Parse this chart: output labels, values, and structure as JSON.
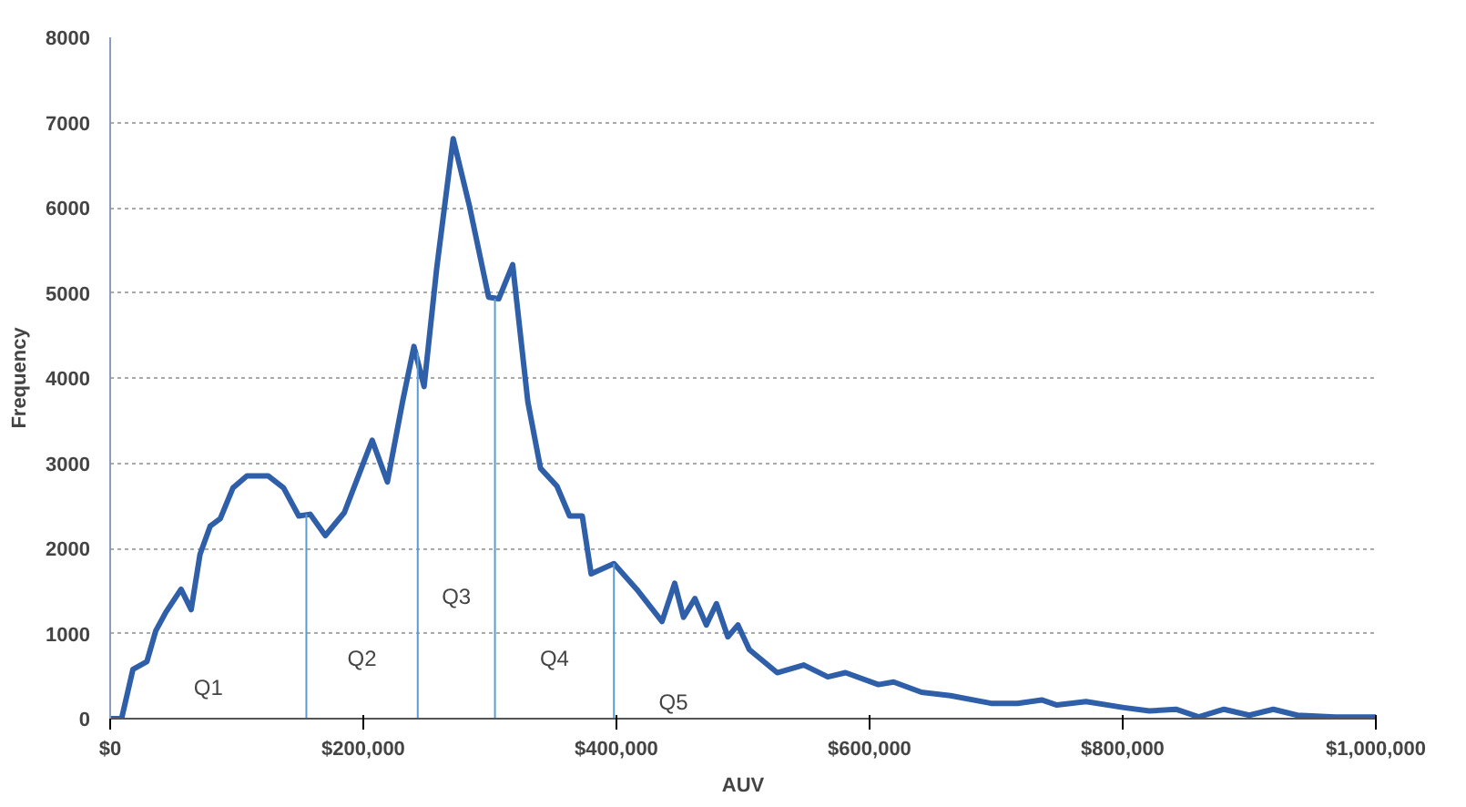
{
  "chart_data": {
    "type": "line",
    "xlabel": "AUV",
    "ylabel": "Frequency",
    "xlim": [
      0,
      1000000
    ],
    "ylim": [
      0,
      8000
    ],
    "xticks": [
      {
        "value": 0,
        "label": "$0"
      },
      {
        "value": 200000,
        "label": "$200,000"
      },
      {
        "value": 400000,
        "label": "$400,000"
      },
      {
        "value": 600000,
        "label": "$600,000"
      },
      {
        "value": 800000,
        "label": "$800,000"
      },
      {
        "value": 1000000,
        "label": "$1,000,000"
      }
    ],
    "yticks": [
      0,
      1000,
      2000,
      3000,
      4000,
      5000,
      6000,
      7000,
      8000
    ],
    "grid": "y",
    "marker": "none",
    "line_style": "solid",
    "series": [
      {
        "color": "#2e5fa8",
        "x": [
          0,
          9000,
          18000,
          29000,
          36000,
          44000,
          56000,
          64000,
          71000,
          79000,
          87000,
          97000,
          108000,
          125000,
          137000,
          149000,
          158000,
          170000,
          185000,
          207000,
          219000,
          231000,
          240000,
          248000,
          258000,
          271000,
          284000,
          299000,
          307000,
          318000,
          330000,
          340000,
          353000,
          363000,
          373000,
          380000,
          398000,
          416000,
          436000,
          446000,
          453000,
          462000,
          471000,
          479000,
          488000,
          496000,
          505000,
          527000,
          548000,
          567000,
          581000,
          607000,
          619000,
          641000,
          664000,
          696000,
          717000,
          736000,
          748000,
          771000,
          801000,
          821000,
          842000,
          860000,
          880000,
          900000,
          919000,
          938000,
          968000,
          1000000
        ],
        "values": [
          0,
          0,
          580,
          670,
          1030,
          1250,
          1520,
          1280,
          1930,
          2260,
          2350,
          2710,
          2850,
          2850,
          2710,
          2380,
          2400,
          2150,
          2420,
          3270,
          2780,
          3720,
          4370,
          3900,
          5290,
          6810,
          6010,
          4950,
          4930,
          5330,
          3720,
          2940,
          2730,
          2380,
          2380,
          1700,
          1820,
          1520,
          1140,
          1590,
          1190,
          1410,
          1100,
          1350,
          960,
          1100,
          810,
          540,
          630,
          490,
          540,
          400,
          430,
          310,
          270,
          180,
          180,
          220,
          160,
          200,
          130,
          90,
          110,
          20,
          110,
          40,
          110,
          40,
          20,
          20
        ]
      },
      {
        "color": "#5b9bd5",
        "x": [
          155000,
          155000
        ],
        "values": [
          0,
          2400
        ]
      },
      {
        "color": "#5b9bd5",
        "x": [
          243000,
          243000
        ],
        "values": [
          0,
          4300
        ]
      },
      {
        "color": "#5b9bd5",
        "x": [
          304000,
          304000
        ],
        "values": [
          0,
          4930
        ]
      },
      {
        "color": "#5b9bd5",
        "x": [
          398000,
          398000
        ],
        "values": [
          0,
          1820
        ]
      }
    ],
    "annotations": [
      "Q1",
      "Q2",
      "Q3",
      "Q4",
      "Q5"
    ]
  }
}
